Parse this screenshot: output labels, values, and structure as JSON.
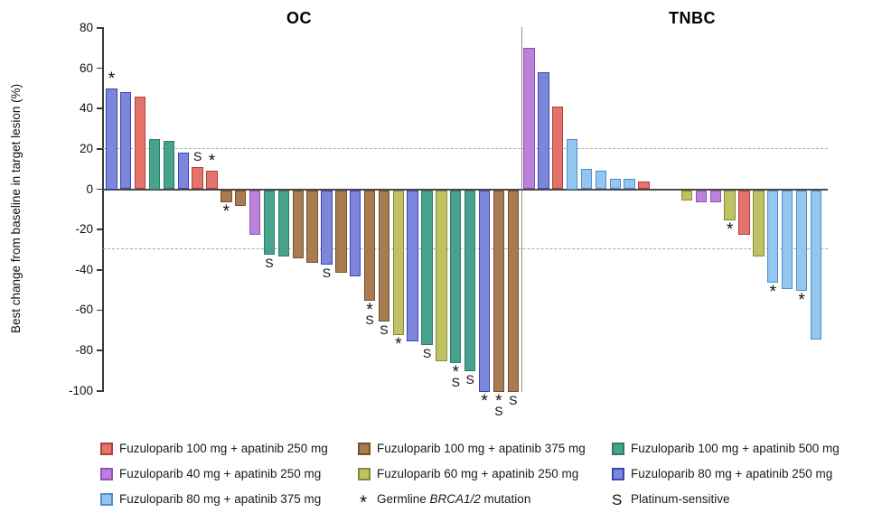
{
  "figure": {
    "y_axis_label": "Best change from baseline in target lesion (%)"
  },
  "chart_data": {
    "type": "bar",
    "subtype": "waterfall",
    "title": "",
    "xlabel": "",
    "ylabel": "Best change from baseline in target lesion (%)",
    "ylim": [
      -100,
      80
    ],
    "yticks": [
      80,
      60,
      40,
      20,
      0,
      -20,
      -40,
      -60,
      -80,
      -100
    ],
    "reference_lines": [
      20,
      -30
    ],
    "grid": false,
    "palette": {
      "red": {
        "fill": "#E4736B",
        "stroke": "#B04038",
        "label": "Fuzuloparib 100 mg + apatinib 250 mg"
      },
      "purple": {
        "fill": "#BC82D9",
        "stroke": "#9351B5",
        "label": "Fuzuloparib 40 mg + apatinib 250 mg"
      },
      "lightblue": {
        "fill": "#93C6F0",
        "stroke": "#4E8FCC",
        "label": "Fuzuloparib 80 mg + apatinib 375 mg"
      },
      "brown": {
        "fill": "#A87C50",
        "stroke": "#74512B",
        "label": "Fuzuloparib 100 mg + apatinib 375 mg"
      },
      "olive": {
        "fill": "#BFC163",
        "stroke": "#878A33",
        "label": "Fuzuloparib 60 mg + apatinib 250 mg"
      },
      "teal": {
        "fill": "#48A28D",
        "stroke": "#2A7D66",
        "label": "Fuzuloparib 100 mg + apatinib 500 mg"
      },
      "blue": {
        "fill": "#7C87DC",
        "stroke": "#3A46B4",
        "label": "Fuzuloparib 80 mg + apatinib 250 mg"
      }
    },
    "markers": {
      "asterisk": "Germline BRCA1/2 mutation",
      "S": "Platinum-sensitive"
    },
    "panels": [
      {
        "title": "OC",
        "bars": [
          {
            "value": 50,
            "group": "blue",
            "marks": [
              "*"
            ]
          },
          {
            "value": 48,
            "group": "blue",
            "marks": []
          },
          {
            "value": 46,
            "group": "red",
            "marks": []
          },
          {
            "value": 25,
            "group": "teal",
            "marks": []
          },
          {
            "value": 24,
            "group": "teal",
            "marks": []
          },
          {
            "value": 18,
            "group": "blue",
            "marks": []
          },
          {
            "value": 11,
            "group": "red",
            "marks": [
              "S"
            ]
          },
          {
            "value": 9,
            "group": "red",
            "marks": [
              "*"
            ]
          },
          {
            "value": -6,
            "group": "brown",
            "marks": [
              "*"
            ]
          },
          {
            "value": -8,
            "group": "brown",
            "marks": []
          },
          {
            "value": -22,
            "group": "purple",
            "marks": []
          },
          {
            "value": -32,
            "group": "teal",
            "marks": [
              "S"
            ]
          },
          {
            "value": -33,
            "group": "teal",
            "marks": []
          },
          {
            "value": -34,
            "group": "brown",
            "marks": []
          },
          {
            "value": -36,
            "group": "brown",
            "marks": []
          },
          {
            "value": -37,
            "group": "blue",
            "marks": [
              "S"
            ]
          },
          {
            "value": -41,
            "group": "brown",
            "marks": []
          },
          {
            "value": -43,
            "group": "blue",
            "marks": []
          },
          {
            "value": -55,
            "group": "brown",
            "marks": [
              "*",
              "S"
            ]
          },
          {
            "value": -65,
            "group": "brown",
            "marks": [
              "S"
            ]
          },
          {
            "value": -72,
            "group": "olive",
            "marks": [
              "*"
            ]
          },
          {
            "value": -75,
            "group": "blue",
            "marks": []
          },
          {
            "value": -77,
            "group": "teal",
            "marks": [
              "S"
            ]
          },
          {
            "value": -85,
            "group": "olive",
            "marks": []
          },
          {
            "value": -86,
            "group": "teal",
            "marks": [
              "*",
              "S"
            ]
          },
          {
            "value": -90,
            "group": "teal",
            "marks": [
              "S"
            ]
          },
          {
            "value": -100,
            "group": "blue",
            "marks": [
              "*"
            ]
          },
          {
            "value": -100,
            "group": "brown",
            "marks": [
              "*",
              "S"
            ]
          },
          {
            "value": -100,
            "group": "brown",
            "marks": [
              "S"
            ]
          }
        ]
      },
      {
        "title": "TNBC",
        "bars": [
          {
            "value": 70,
            "group": "purple",
            "marks": []
          },
          {
            "value": 58,
            "group": "blue",
            "marks": []
          },
          {
            "value": 41,
            "group": "red",
            "marks": []
          },
          {
            "value": 25,
            "group": "lightblue",
            "marks": []
          },
          {
            "value": 10,
            "group": "lightblue",
            "marks": []
          },
          {
            "value": 9,
            "group": "lightblue",
            "marks": []
          },
          {
            "value": 5,
            "group": "lightblue",
            "marks": []
          },
          {
            "value": 5,
            "group": "lightblue",
            "marks": []
          },
          {
            "value": 4,
            "group": "red",
            "marks": []
          },
          {
            "value": 0,
            "group": null,
            "marks": []
          },
          {
            "value": 0,
            "group": null,
            "marks": []
          },
          {
            "value": -5,
            "group": "olive",
            "marks": []
          },
          {
            "value": -6,
            "group": "purple",
            "marks": []
          },
          {
            "value": -6,
            "group": "purple",
            "marks": []
          },
          {
            "value": -15,
            "group": "olive",
            "marks": [
              "*"
            ]
          },
          {
            "value": -22,
            "group": "red",
            "marks": []
          },
          {
            "value": -33,
            "group": "olive",
            "marks": []
          },
          {
            "value": -46,
            "group": "lightblue",
            "marks": [
              "*"
            ]
          },
          {
            "value": -49,
            "group": "lightblue",
            "marks": []
          },
          {
            "value": -50,
            "group": "lightblue",
            "marks": [
              "*"
            ]
          },
          {
            "value": -74,
            "group": "lightblue",
            "marks": []
          }
        ]
      }
    ]
  },
  "legend": {
    "columns": [
      [
        {
          "type": "swatch",
          "color": "red",
          "label": "Fuzuloparib 100 mg + apatinib 250 mg"
        },
        {
          "type": "swatch",
          "color": "purple",
          "label": "Fuzuloparib 40 mg + apatinib 250 mg"
        },
        {
          "type": "swatch",
          "color": "lightblue",
          "label": "Fuzuloparib 80 mg + apatinib 375 mg"
        }
      ],
      [
        {
          "type": "swatch",
          "color": "brown",
          "label": "Fuzuloparib 100 mg + apatinib 375 mg"
        },
        {
          "type": "swatch",
          "color": "olive",
          "label": "Fuzuloparib 60 mg + apatinib 250 mg"
        },
        {
          "type": "asterisk",
          "symbol": "*",
          "label_prefix": "Germline ",
          "label_italic": "BRCA1/2",
          "label_suffix": " mutation"
        }
      ],
      [
        {
          "type": "swatch",
          "color": "teal",
          "label": "Fuzuloparib 100 mg + apatinib 500 mg"
        },
        {
          "type": "swatch",
          "color": "blue",
          "label": "Fuzuloparib 80 mg + apatinib 250 mg"
        },
        {
          "type": "S",
          "symbol": "S",
          "label": "Platinum-sensitive"
        }
      ]
    ]
  }
}
